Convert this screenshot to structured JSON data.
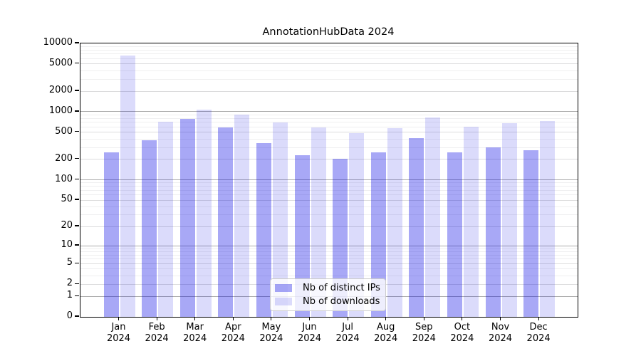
{
  "chart_data": {
    "type": "bar",
    "title": "AnnotationHubData 2024",
    "x_month_labels": [
      "Jan",
      "Feb",
      "Mar",
      "Apr",
      "May",
      "Jun",
      "Jul",
      "Aug",
      "Sep",
      "Oct",
      "Nov",
      "Dec"
    ],
    "x_year_label": "2024",
    "series": [
      {
        "name": "Nb of distinct IPs",
        "color_hex": "#a9a9f5",
        "color_rgba": "rgba(0,0,230,0.34)",
        "values": [
          255,
          385,
          780,
          595,
          345,
          233,
          205,
          252,
          410,
          252,
          300,
          272
        ]
      },
      {
        "name": "Nb of downloads",
        "color_hex": "#dcdcfa",
        "color_rgba": "rgba(0,0,230,0.14)",
        "values": [
          6650,
          720,
          1065,
          900,
          700,
          590,
          490,
          570,
          830,
          605,
          675,
          735
        ]
      }
    ],
    "y_scale": "log10(1+value)",
    "ylim": [
      0,
      10000
    ],
    "y_ticks": [
      10000,
      5000,
      2000,
      1000,
      500,
      200,
      100,
      50,
      20,
      10,
      5,
      2,
      1,
      0
    ],
    "y_tick_labels": [
      "10000",
      "5000",
      "2000",
      "1000",
      "500",
      "200",
      "100",
      "50",
      "20",
      "10",
      "5",
      "2",
      "1",
      "0"
    ],
    "grid": true,
    "gridline_colors": {
      "power_of_ten": "#ababab",
      "two_five": "#dcdcdd",
      "minor": "#efeff0"
    },
    "legend_position": "bottom-center"
  }
}
